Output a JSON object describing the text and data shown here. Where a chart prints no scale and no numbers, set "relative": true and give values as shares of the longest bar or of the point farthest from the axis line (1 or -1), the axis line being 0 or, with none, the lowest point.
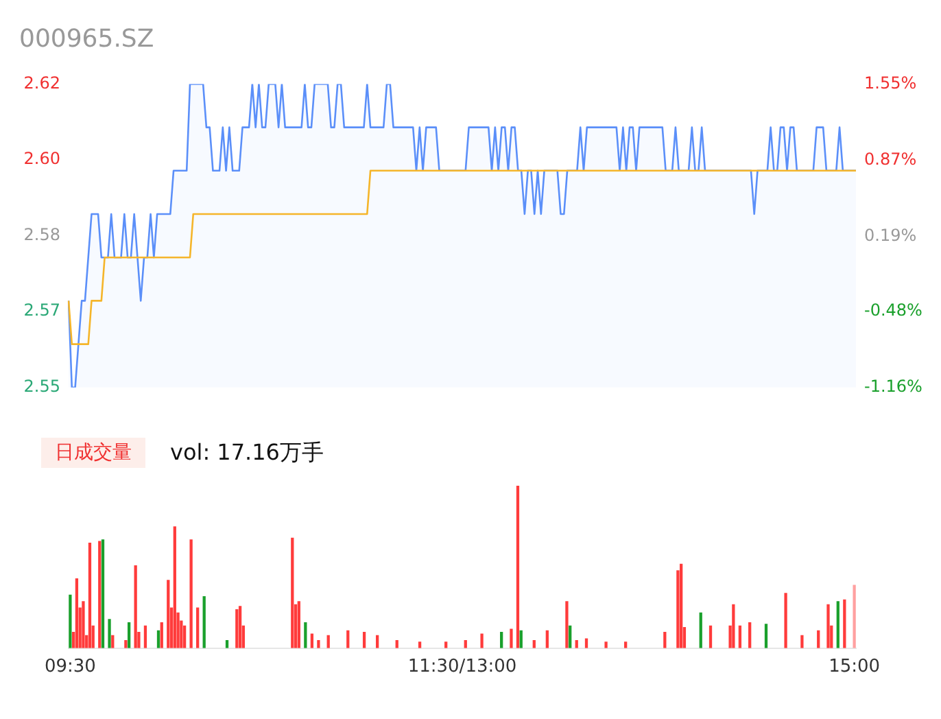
{
  "chart_data": [
    {
      "type": "line",
      "title": "000965.SZ",
      "categories": [
        null,
        null,
        null,
        null,
        null,
        null,
        null,
        null,
        null,
        null,
        null,
        null,
        null,
        null,
        null,
        null,
        null,
        null,
        null,
        null,
        null,
        null,
        null,
        null,
        null,
        null,
        null,
        null,
        null,
        null,
        null,
        null,
        null,
        null,
        null,
        null,
        null,
        null,
        null,
        null,
        null,
        null,
        null,
        null,
        null,
        null,
        null,
        null,
        null,
        null,
        null,
        null,
        null,
        null,
        null,
        null,
        null,
        null,
        null,
        null,
        null,
        null,
        null,
        null,
        null,
        null,
        null,
        null,
        null,
        null,
        null,
        null,
        null,
        null,
        null,
        null,
        null,
        null,
        null,
        null,
        null,
        null,
        null,
        null,
        null,
        null,
        null,
        null,
        null,
        null,
        null,
        null,
        null,
        null,
        null,
        null,
        null,
        null,
        null,
        null,
        null,
        null,
        null,
        null,
        null,
        null,
        null,
        null,
        null,
        null,
        null,
        null,
        null,
        null,
        null,
        null,
        null,
        null,
        null,
        null,
        null,
        null,
        null,
        null,
        null,
        null,
        null,
        null,
        null,
        null,
        null,
        null,
        null,
        null,
        null,
        null,
        null,
        null,
        null,
        null,
        null,
        null,
        null,
        null,
        null,
        null,
        null,
        null,
        null,
        null,
        null,
        null,
        null,
        null,
        null,
        null,
        null,
        null,
        null,
        null,
        null,
        null,
        null,
        null,
        null,
        null,
        null,
        null,
        null,
        null,
        null,
        null,
        null,
        null,
        null,
        null,
        null,
        null,
        null,
        null,
        null,
        null,
        null,
        null,
        null,
        null,
        null,
        null,
        null,
        null,
        null,
        null,
        null,
        null,
        null,
        null,
        null,
        null,
        null,
        null,
        null,
        null,
        null,
        null,
        null,
        null,
        null,
        null,
        null,
        null,
        null,
        null,
        null,
        null,
        null,
        null,
        null,
        null,
        null,
        null,
        null,
        null,
        null,
        null,
        null,
        null,
        null,
        null,
        null,
        null,
        null,
        null,
        null,
        null,
        null,
        null,
        null,
        null,
        null,
        null,
        null
      ],
      "ylim": [
        2.55,
        2.62
      ],
      "yticks": [
        2.62,
        {
          "value": 2.6025,
          "label": "2.60"
        },
        {
          "value": 2.585,
          "label": "2.58"
        },
        {
          "value": 2.5675,
          "label": "2.57"
        },
        2.55
      ],
      "y2lim": [
        -1.16,
        1.55
      ],
      "y2ticks": [
        {
          "value": 1.55,
          "label": "1.55%"
        },
        {
          "value": 0.87,
          "label": "0.87%"
        },
        {
          "value": 0.19,
          "label": "0.19%"
        },
        {
          "value": -0.48,
          "label": "-0.48%"
        },
        {
          "value": -1.16,
          "label": "-1.16%"
        }
      ],
      "series": [
        {
          "type": "area",
          "color": "#5b8ff9",
          "values": [
            2.57,
            2.55,
            2.55,
            2.56,
            2.57,
            2.57,
            2.58,
            2.59,
            2.59,
            2.59,
            2.58,
            2.58,
            2.58,
            2.59,
            2.58,
            2.58,
            2.58,
            2.59,
            2.58,
            2.58,
            2.59,
            2.58,
            2.57,
            2.58,
            2.58,
            2.59,
            2.58,
            2.59,
            2.59,
            2.59,
            2.59,
            2.59,
            2.6,
            2.6,
            2.6,
            2.6,
            2.6,
            2.62,
            2.62,
            2.62,
            2.62,
            2.62,
            2.61,
            2.61,
            2.6,
            2.6,
            2.6,
            2.61,
            2.6,
            2.61,
            2.6,
            2.6,
            2.6,
            2.61,
            2.61,
            2.61,
            2.62,
            2.61,
            2.62,
            2.61,
            2.61,
            2.62,
            2.62,
            2.62,
            2.61,
            2.62,
            2.61,
            2.61,
            2.61,
            2.61,
            2.61,
            2.61,
            2.62,
            2.61,
            2.61,
            2.62,
            2.62,
            2.62,
            2.62,
            2.62,
            2.61,
            2.61,
            2.62,
            2.62,
            2.61,
            2.61,
            2.61,
            2.61,
            2.61,
            2.61,
            2.61,
            2.62,
            2.61,
            2.61,
            2.61,
            2.61,
            2.61,
            2.62,
            2.62,
            2.61,
            2.61,
            2.61,
            2.61,
            2.61,
            2.61,
            2.61,
            2.6,
            2.61,
            2.6,
            2.61,
            2.61,
            2.61,
            2.61,
            2.6,
            2.6,
            2.6,
            2.6,
            2.6,
            2.6,
            2.6,
            2.6,
            2.6,
            2.61,
            2.61,
            2.61,
            2.61,
            2.61,
            2.61,
            2.61,
            2.6,
            2.61,
            2.6,
            2.61,
            2.61,
            2.6,
            2.61,
            2.61,
            2.6,
            2.6,
            2.59,
            2.6,
            2.6,
            2.59,
            2.6,
            2.59,
            2.6,
            2.6,
            2.6,
            2.6,
            2.6,
            2.59,
            2.59,
            2.6,
            2.6,
            2.6,
            2.6,
            2.61,
            2.6,
            2.61,
            2.61,
            2.61,
            2.61,
            2.61,
            2.61,
            2.61,
            2.61,
            2.61,
            2.61,
            2.6,
            2.61,
            2.6,
            2.61,
            2.61,
            2.6,
            2.61,
            2.61,
            2.61,
            2.61,
            2.61,
            2.61,
            2.61,
            2.61,
            2.6,
            2.6,
            2.6,
            2.61,
            2.6,
            2.6,
            2.6,
            2.6,
            2.61,
            2.6,
            2.6,
            2.61,
            2.6,
            2.6,
            2.6,
            2.6,
            2.6,
            2.6,
            2.6,
            2.6,
            2.6,
            2.6,
            2.6,
            2.6,
            2.6,
            2.6,
            2.6,
            2.59,
            2.6,
            2.6,
            2.6,
            2.6,
            2.61,
            2.6,
            2.6,
            2.61,
            2.61,
            2.6,
            2.61,
            2.61,
            2.6,
            2.6,
            2.6,
            2.6,
            2.6,
            2.6,
            2.61,
            2.61,
            2.61,
            2.6,
            2.6,
            2.6,
            2.6,
            2.61,
            2.6,
            2.6,
            2.6,
            2.6,
            2.6
          ]
        },
        {
          "type": "line",
          "color": "#f5b52a",
          "values": [
            2.57,
            2.56,
            2.56,
            2.56,
            2.56,
            2.56,
            2.56,
            2.57,
            2.57,
            2.57,
            2.57,
            2.58,
            2.58,
            2.58,
            2.58,
            2.58,
            2.58,
            2.58,
            2.58,
            2.58,
            2.58,
            2.58,
            2.58,
            2.58,
            2.58,
            2.58,
            2.58,
            2.58,
            2.58,
            2.58,
            2.58,
            2.58,
            2.58,
            2.58,
            2.58,
            2.58,
            2.58,
            2.58,
            2.59,
            2.59,
            2.59,
            2.59,
            2.59,
            2.59,
            2.59,
            2.59,
            2.59,
            2.59,
            2.59,
            2.59,
            2.59,
            2.59,
            2.59,
            2.59,
            2.59,
            2.59,
            2.59,
            2.59,
            2.59,
            2.59,
            2.59,
            2.59,
            2.59,
            2.59,
            2.59,
            2.59,
            2.59,
            2.59,
            2.59,
            2.59,
            2.59,
            2.59,
            2.59,
            2.59,
            2.59,
            2.59,
            2.59,
            2.59,
            2.59,
            2.59,
            2.59,
            2.59,
            2.59,
            2.59,
            2.59,
            2.59,
            2.59,
            2.59,
            2.59,
            2.59,
            2.59,
            2.59,
            2.6,
            2.6,
            2.6,
            2.6,
            2.6,
            2.6,
            2.6,
            2.6,
            2.6,
            2.6,
            2.6,
            2.6,
            2.6,
            2.6,
            2.6,
            2.6,
            2.6,
            2.6,
            2.6,
            2.6,
            2.6,
            2.6,
            2.6,
            2.6,
            2.6,
            2.6,
            2.6,
            2.6,
            2.6,
            2.6,
            2.6,
            2.6,
            2.6,
            2.6,
            2.6,
            2.6,
            2.6,
            2.6,
            2.6,
            2.6,
            2.6,
            2.6,
            2.6,
            2.6,
            2.6,
            2.6,
            2.6,
            2.6,
            2.6,
            2.6,
            2.6,
            2.6,
            2.6,
            2.6,
            2.6,
            2.6,
            2.6,
            2.6,
            2.6,
            2.6,
            2.6,
            2.6,
            2.6,
            2.6,
            2.6,
            2.6,
            2.6,
            2.6,
            2.6,
            2.6,
            2.6,
            2.6,
            2.6,
            2.6,
            2.6,
            2.6,
            2.6,
            2.6,
            2.6,
            2.6,
            2.6,
            2.6,
            2.6,
            2.6,
            2.6,
            2.6,
            2.6,
            2.6,
            2.6,
            2.6,
            2.6,
            2.6,
            2.6,
            2.6,
            2.6,
            2.6,
            2.6,
            2.6,
            2.6,
            2.6,
            2.6,
            2.6,
            2.6,
            2.6,
            2.6,
            2.6,
            2.6,
            2.6,
            2.6,
            2.6,
            2.6,
            2.6,
            2.6,
            2.6,
            2.6,
            2.6,
            2.6,
            2.6,
            2.6,
            2.6,
            2.6,
            2.6,
            2.6,
            2.6,
            2.6,
            2.6,
            2.6,
            2.6,
            2.6,
            2.6,
            2.6,
            2.6,
            2.6,
            2.6,
            2.6,
            2.6,
            2.6,
            2.6,
            2.6,
            2.6,
            2.6,
            2.6,
            2.6,
            2.6,
            2.6,
            2.6,
            2.6,
            2.6,
            2.6
          ]
        }
      ]
    },
    {
      "type": "bar",
      "relative": true,
      "annotations": [
        "日成交量",
        "vol: 17.16万手"
      ],
      "tick_labels": "x",
      "categories": [
        "09:30",
        null,
        null,
        null,
        null,
        null,
        null,
        null,
        null,
        null,
        null,
        null,
        null,
        null,
        null,
        null,
        null,
        null,
        null,
        null,
        null,
        null,
        null,
        null,
        null,
        null,
        null,
        null,
        null,
        null,
        null,
        null,
        null,
        null,
        null,
        null,
        null,
        null,
        null,
        null,
        null,
        null,
        null,
        null,
        null,
        null,
        null,
        null,
        null,
        null,
        null,
        null,
        null,
        null,
        null,
        null,
        null,
        null,
        null,
        null,
        null,
        null,
        null,
        null,
        null,
        null,
        null,
        null,
        null,
        null,
        null,
        null,
        null,
        null,
        null,
        null,
        null,
        null,
        null,
        null,
        null,
        null,
        null,
        null,
        null,
        null,
        null,
        null,
        null,
        null,
        null,
        null,
        null,
        null,
        null,
        null,
        null,
        null,
        null,
        null,
        null,
        null,
        null,
        null,
        null,
        null,
        null,
        null,
        null,
        null,
        null,
        null,
        null,
        null,
        null,
        null,
        null,
        null,
        null,
        null,
        "11:30/13:00",
        null,
        null,
        null,
        null,
        null,
        null,
        null,
        null,
        null,
        null,
        null,
        null,
        null,
        null,
        null,
        null,
        null,
        null,
        null,
        null,
        null,
        null,
        null,
        null,
        null,
        null,
        null,
        null,
        null,
        null,
        null,
        null,
        null,
        null,
        null,
        null,
        null,
        null,
        null,
        null,
        null,
        null,
        null,
        null,
        null,
        null,
        null,
        null,
        null,
        null,
        null,
        null,
        null,
        null,
        null,
        null,
        null,
        null,
        null,
        null,
        null,
        null,
        null,
        null,
        null,
        null,
        null,
        null,
        null,
        null,
        null,
        null,
        null,
        null,
        null,
        null,
        null,
        null,
        null,
        null,
        null,
        null,
        null,
        null,
        null,
        null,
        null,
        null,
        null,
        null,
        null,
        null,
        null,
        null,
        null,
        null,
        null,
        null,
        null,
        null,
        null,
        null,
        null,
        null,
        null,
        null,
        null,
        null,
        null,
        null,
        null,
        null,
        null,
        null,
        null,
        null,
        null,
        null,
        null,
        "15:00"
      ],
      "values": [
        0.33,
        0.1,
        0.43,
        0.25,
        0.29,
        0.08,
        0.65,
        0.14,
        null,
        0.66,
        0.67,
        null,
        0.18,
        0.08,
        null,
        null,
        null,
        0.05,
        0.16,
        null,
        0.51,
        0.1,
        null,
        0.14,
        null,
        null,
        null,
        0.11,
        0.16,
        null,
        0.42,
        0.25,
        0.75,
        0.22,
        0.17,
        0.14,
        null,
        0.67,
        null,
        0.25,
        null,
        0.32,
        null,
        null,
        null,
        null,
        null,
        null,
        0.05,
        null,
        null,
        0.24,
        0.26,
        0.14,
        null,
        null,
        null,
        null,
        null,
        null,
        null,
        null,
        null,
        null,
        null,
        null,
        null,
        null,
        0.68,
        0.27,
        0.29,
        null,
        0.16,
        null,
        0.09,
        null,
        0.05,
        null,
        null,
        0.08,
        null,
        null,
        null,
        null,
        null,
        0.11,
        null,
        null,
        null,
        null,
        0.1,
        null,
        null,
        null,
        0.08,
        null,
        null,
        null,
        null,
        null,
        0.05,
        null,
        null,
        null,
        null,
        null,
        null,
        0.04,
        null,
        null,
        null,
        null,
        null,
        null,
        null,
        0.04,
        null,
        null,
        null,
        null,
        null,
        0.05,
        null,
        null,
        null,
        null,
        0.09,
        null,
        null,
        null,
        null,
        null,
        0.1,
        null,
        null,
        0.12,
        null,
        1,
        0.11,
        null,
        null,
        null,
        0.05,
        null,
        null,
        null,
        0.11,
        null,
        null,
        null,
        null,
        null,
        0.29,
        0.14,
        null,
        0.05,
        null,
        null,
        0.06,
        null,
        null,
        null,
        null,
        null,
        0.04,
        null,
        null,
        null,
        null,
        null,
        0.04,
        null,
        null,
        null,
        null,
        null,
        null,
        null,
        null,
        null,
        null,
        null,
        0.1,
        null,
        null,
        null,
        0.48,
        0.52,
        0.13,
        null,
        null,
        null,
        null,
        0.22,
        null,
        null,
        0.14,
        null,
        null,
        null,
        null,
        null,
        0.14,
        0.27,
        null,
        0.14,
        null,
        null,
        0.16,
        null,
        null,
        null,
        null,
        0.15,
        null,
        null,
        null,
        null,
        null,
        0.34,
        null,
        null,
        null,
        null,
        0.08,
        null,
        null,
        null,
        null,
        0.11,
        null,
        null,
        0.27,
        0.14,
        null,
        0.29,
        null,
        0.3,
        null,
        null,
        0.39
      ],
      "colors": [
        "#1aa02c",
        "#ff3b3b",
        "#ff3b3b",
        "#ff3b3b",
        "#ff3b3b",
        "#ff3b3b",
        "#ff3b3b",
        "#ff3b3b",
        null,
        "#ff3b3b",
        "#1aa02c",
        null,
        "#1aa02c",
        "#ff3b3b",
        null,
        null,
        null,
        "#ff3b3b",
        "#1aa02c",
        null,
        "#ff3b3b",
        "#ff3b3b",
        null,
        "#ff3b3b",
        null,
        null,
        null,
        "#1aa02c",
        "#ff3b3b",
        null,
        "#ff3b3b",
        "#ff3b3b",
        "#ff3b3b",
        "#ff3b3b",
        "#ff3b3b",
        "#ff3b3b",
        null,
        "#ff3b3b",
        null,
        "#ff3b3b",
        null,
        "#1aa02c",
        null,
        null,
        null,
        null,
        null,
        null,
        "#1aa02c",
        null,
        null,
        "#ff3b3b",
        "#ff3b3b",
        "#ff3b3b",
        null,
        null,
        null,
        null,
        null,
        null,
        null,
        null,
        null,
        null,
        null,
        null,
        null,
        null,
        "#ff3b3b",
        "#ff3b3b",
        "#ff3b3b",
        null,
        "#1aa02c",
        null,
        "#ff3b3b",
        null,
        "#ff3b3b",
        null,
        null,
        "#ff3b3b",
        null,
        null,
        null,
        null,
        null,
        "#ff3b3b",
        null,
        null,
        null,
        null,
        "#ff3b3b",
        null,
        null,
        null,
        "#ff3b3b",
        null,
        null,
        null,
        null,
        null,
        "#ff3b3b",
        null,
        null,
        null,
        null,
        null,
        null,
        "#ff3b3b",
        null,
        null,
        null,
        null,
        null,
        null,
        null,
        "#ff3b3b",
        null,
        null,
        null,
        null,
        null,
        "#ff3b3b",
        null,
        null,
        null,
        null,
        "#ff3b3b",
        null,
        null,
        null,
        null,
        null,
        "#1aa02c",
        null,
        null,
        "#ff3b3b",
        null,
        "#ff3b3b",
        "#1aa02c",
        null,
        null,
        null,
        "#ff3b3b",
        null,
        null,
        null,
        "#ff3b3b",
        null,
        null,
        null,
        null,
        null,
        "#ff3b3b",
        "#1aa02c",
        null,
        "#ff3b3b",
        null,
        null,
        "#ff3b3b",
        null,
        null,
        null,
        null,
        null,
        "#ff3b3b",
        null,
        null,
        null,
        null,
        null,
        "#ff3b3b",
        null,
        null,
        null,
        null,
        null,
        null,
        null,
        null,
        null,
        null,
        null,
        "#ff3b3b",
        null,
        null,
        null,
        "#ff3b3b",
        "#ff3b3b",
        "#ff3b3b",
        null,
        null,
        null,
        null,
        "#1aa02c",
        null,
        null,
        "#ff3b3b",
        null,
        null,
        null,
        null,
        null,
        "#ff3b3b",
        "#ff3b3b",
        null,
        "#ff3b3b",
        null,
        null,
        "#ff3b3b",
        null,
        null,
        null,
        null,
        "#1aa02c",
        null,
        null,
        null,
        null,
        null,
        "#ff3b3b",
        null,
        null,
        null,
        null,
        "#ff3b3b",
        null,
        null,
        null,
        null,
        "#ff3b3b",
        null,
        null,
        "#ff3b3b",
        "#ff3b3b",
        null,
        "#1aa02c",
        null,
        "#ff3b3b",
        null,
        null,
        "#ffa0a0"
      ]
    }
  ]
}
